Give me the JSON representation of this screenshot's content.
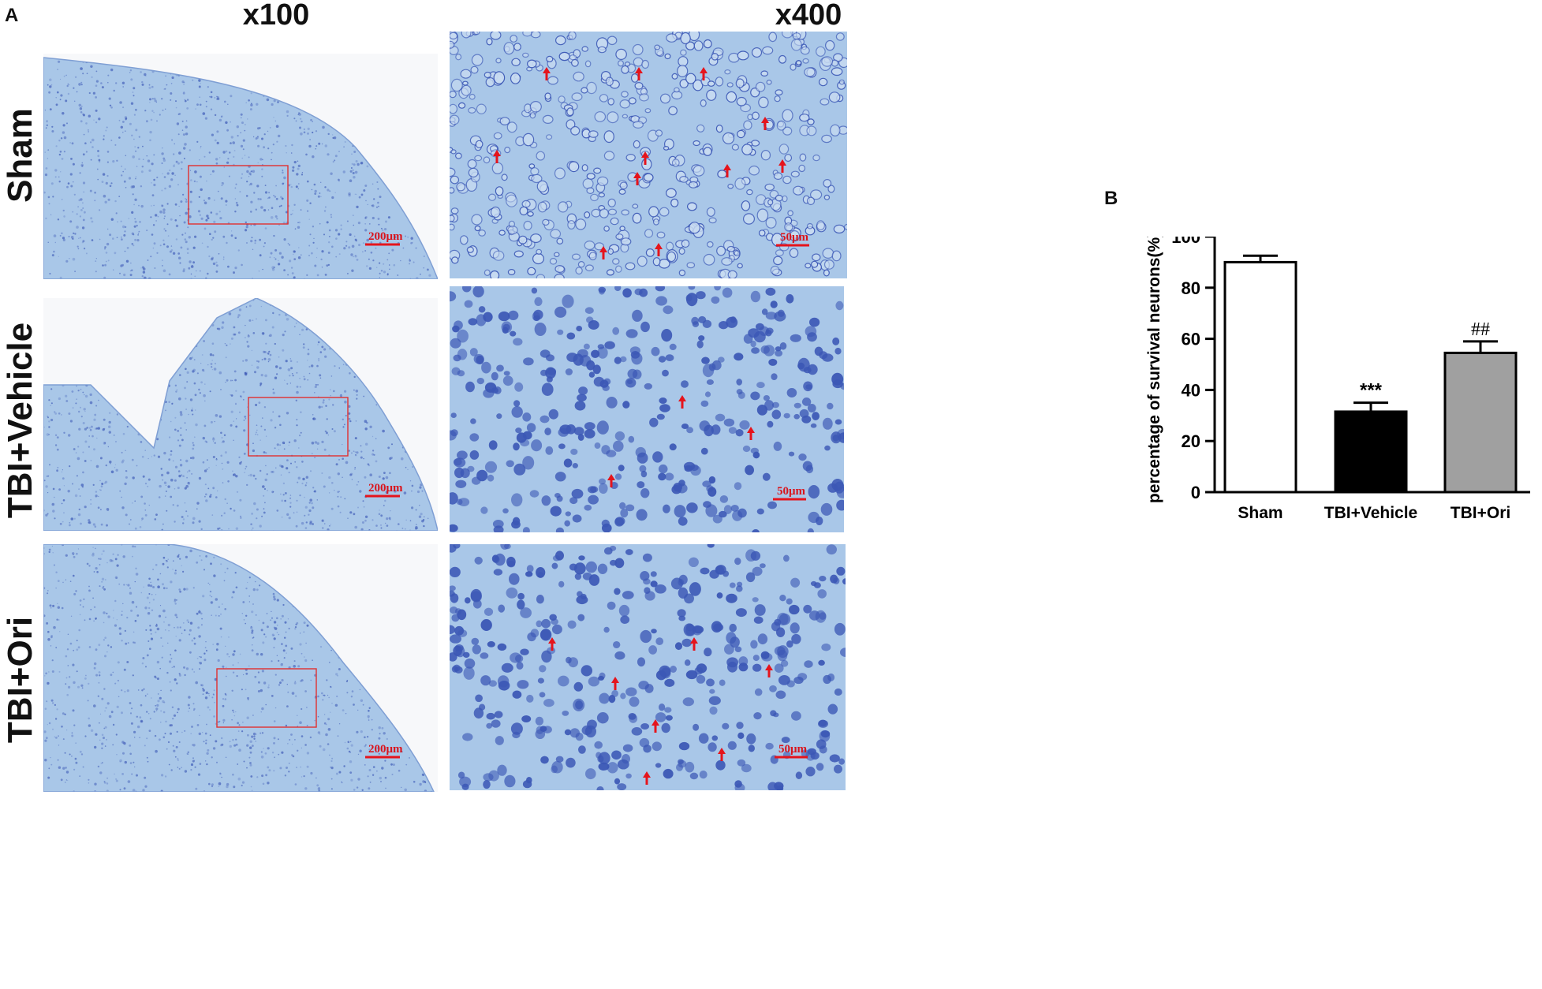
{
  "panels": {
    "a_label": "A",
    "b_label": "B"
  },
  "columns": [
    "x100",
    "x400"
  ],
  "rows": [
    "Sham",
    "TBI+Vehicle",
    "TBI+Ori"
  ],
  "micrographs": {
    "scale_low": "200μm",
    "scale_high": "50μm"
  },
  "colors": {
    "tissue": "#a9c7e8",
    "tissue_dark": "#7f9fd4",
    "nuclei": "#3c58b6",
    "arrow": "#e5141c",
    "box": "#e03030"
  },
  "chart_data": {
    "type": "bar",
    "categories": [
      "Sham",
      "TBI+Vehicle",
      "TBI+Ori"
    ],
    "values": [
      90,
      31.5,
      54.5
    ],
    "errors": [
      2.5,
      3.5,
      4.5
    ],
    "bar_fills": [
      "#ffffff",
      "#000000",
      "#a0a0a0"
    ],
    "annotations": [
      "",
      "***",
      "##"
    ],
    "ylabel": "percentage of survival neurons(%)",
    "xlabel": "",
    "ylim": [
      0,
      100
    ],
    "yticks": [
      0,
      20,
      40,
      60,
      80,
      100
    ]
  }
}
